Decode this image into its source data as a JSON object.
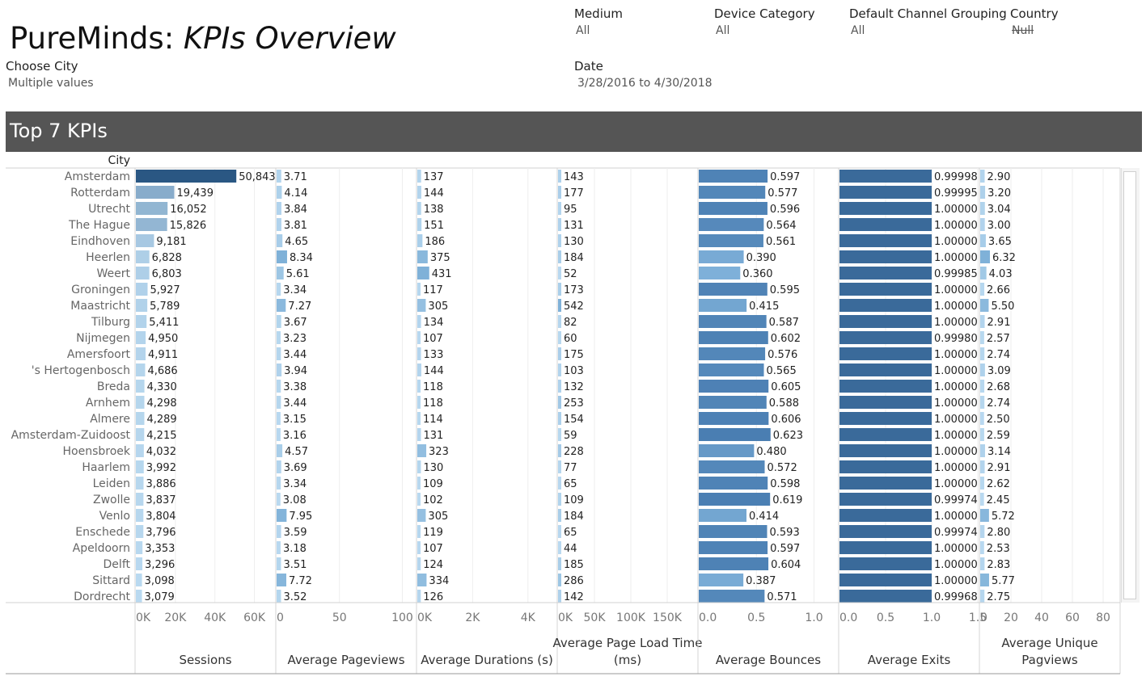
{
  "header": {
    "title_main": "PureMinds: ",
    "title_emph": "KPIs Overview"
  },
  "filters": {
    "choose_city": {
      "label": "Choose City",
      "value": "Multiple values"
    },
    "medium": {
      "label": "Medium",
      "value": "All"
    },
    "device_category": {
      "label": "Device Category",
      "value": "All"
    },
    "channel_grouping": {
      "label": "Default Channel Grouping",
      "value": "All"
    },
    "country": {
      "label": "Country",
      "value": "Null"
    },
    "date": {
      "label": "Date",
      "value": "3/28/2016 to 4/30/2018"
    }
  },
  "section": {
    "title": "Top 7 KPIs",
    "row_header": "City"
  },
  "chart_data": {
    "type": "bar",
    "orientation": "horizontal",
    "categories": [
      "Amsterdam",
      "Rotterdam",
      "Utrecht",
      "The Hague",
      "Eindhoven",
      "Heerlen",
      "Weert",
      "Groningen",
      "Maastricht",
      "Tilburg",
      "Nijmegen",
      "Amersfoort",
      "'s Hertogenbosch",
      "Breda",
      "Arnhem",
      "Almere",
      "Amsterdam-Zuidoost",
      "Hoensbroek",
      "Haarlem",
      "Leiden",
      "Zwolle",
      "Venlo",
      "Enschede",
      "Apeldoorn",
      "Delft",
      "Sittard",
      "Dordrecht"
    ],
    "series": [
      {
        "name": "Sessions",
        "labels": [
          "Sessions"
        ],
        "xlim": [
          0,
          70000
        ],
        "ticks": [
          0,
          20000,
          40000,
          60000
        ],
        "tick_labels": [
          "0K",
          "20K",
          "40K",
          "60K"
        ],
        "values": [
          50843,
          19439,
          16052,
          15826,
          9181,
          6828,
          6803,
          5927,
          5789,
          5411,
          4950,
          4911,
          4686,
          4330,
          4298,
          4289,
          4215,
          4032,
          3992,
          3886,
          3837,
          3804,
          3796,
          3353,
          3296,
          3098,
          3079
        ],
        "value_labels": [
          "50,843",
          "19,439",
          "16,052",
          "15,826",
          "9,181",
          "6,828",
          "6,803",
          "5,927",
          "5,789",
          "5,411",
          "4,950",
          "4,911",
          "4,686",
          "4,330",
          "4,298",
          "4,289",
          "4,215",
          "4,032",
          "3,992",
          "3,886",
          "3,837",
          "3,804",
          "3,796",
          "3,353",
          "3,296",
          "3,098",
          "3,079"
        ],
        "color_low": "#b9d9f0",
        "color_high": "#2a5783"
      },
      {
        "name": "Average Pageviews",
        "labels": [
          "Average Pageviews"
        ],
        "xlim": [
          0,
          110
        ],
        "ticks": [
          0,
          50,
          100
        ],
        "tick_labels": [
          "0",
          "50",
          "100"
        ],
        "values": [
          3.71,
          4.14,
          3.84,
          3.81,
          4.65,
          8.34,
          5.61,
          3.34,
          7.27,
          3.67,
          3.23,
          3.44,
          3.94,
          3.38,
          3.44,
          3.15,
          3.16,
          4.57,
          3.69,
          3.34,
          3.08,
          7.95,
          3.59,
          3.18,
          3.51,
          7.72,
          3.52
        ],
        "value_labels": [
          "3.71",
          "4.14",
          "3.84",
          "3.81",
          "4.65",
          "8.34",
          "5.61",
          "3.34",
          "7.27",
          "3.67",
          "3.23",
          "3.44",
          "3.94",
          "3.38",
          "3.44",
          "3.15",
          "3.16",
          "4.57",
          "3.69",
          "3.34",
          "3.08",
          "7.95",
          "3.59",
          "3.18",
          "3.51",
          "7.72",
          "3.52"
        ],
        "color_low": "#b9d9f0",
        "color_high": "#7fb1d8"
      },
      {
        "name": "Average Durations (s)",
        "labels": [
          "Average Durations (s)"
        ],
        "xlim": [
          0,
          5000
        ],
        "ticks": [
          0,
          2000,
          4000
        ],
        "tick_labels": [
          "0K",
          "2K",
          "4K"
        ],
        "values": [
          137,
          144,
          138,
          151,
          186,
          375,
          431,
          117,
          305,
          134,
          107,
          133,
          144,
          118,
          118,
          114,
          131,
          323,
          130,
          109,
          102,
          305,
          119,
          107,
          124,
          334,
          126
        ],
        "value_labels": [
          "137",
          "144",
          "138",
          "151",
          "186",
          "375",
          "431",
          "117",
          "305",
          "134",
          "107",
          "133",
          "144",
          "118",
          "118",
          "114",
          "131",
          "323",
          "130",
          "109",
          "102",
          "305",
          "119",
          "107",
          "124",
          "334",
          "126"
        ],
        "color_low": "#b9d9f0",
        "color_high": "#7fb1d8"
      },
      {
        "name": "Average Page Load Time (ms)",
        "labels": [
          "Average Page Load Time",
          "(ms)"
        ],
        "xlim": [
          0,
          190000
        ],
        "ticks": [
          0,
          50000,
          100000,
          150000
        ],
        "tick_labels": [
          "0K",
          "50K",
          "100K",
          "150K"
        ],
        "values": [
          143,
          177,
          95,
          131,
          130,
          184,
          52,
          173,
          542,
          82,
          60,
          175,
          103,
          132,
          253,
          154,
          59,
          228,
          77,
          65,
          109,
          184,
          65,
          44,
          185,
          286,
          142
        ],
        "value_labels": [
          "143",
          "177",
          "95",
          "131",
          "130",
          "184",
          "52",
          "173",
          "542",
          "82",
          "60",
          "175",
          "103",
          "132",
          "253",
          "154",
          "59",
          "228",
          "77",
          "65",
          "109",
          "184",
          "65",
          "44",
          "185",
          "286",
          "142"
        ],
        "color_low": "#b9d9f0",
        "color_high": "#7fb1d8"
      },
      {
        "name": "Average Bounces",
        "labels": [
          "Average Bounces"
        ],
        "xlim": [
          0,
          1.2
        ],
        "ticks": [
          0,
          0.5,
          1.0
        ],
        "tick_labels": [
          "0.0",
          "0.5",
          "1.0"
        ],
        "values": [
          0.597,
          0.577,
          0.596,
          0.564,
          0.561,
          0.39,
          0.36,
          0.595,
          0.415,
          0.587,
          0.602,
          0.576,
          0.565,
          0.605,
          0.588,
          0.606,
          0.623,
          0.48,
          0.572,
          0.598,
          0.619,
          0.414,
          0.593,
          0.597,
          0.604,
          0.387,
          0.571
        ],
        "value_labels": [
          "0.597",
          "0.577",
          "0.596",
          "0.564",
          "0.561",
          "0.390",
          "0.360",
          "0.595",
          "0.415",
          "0.587",
          "0.602",
          "0.576",
          "0.565",
          "0.605",
          "0.588",
          "0.606",
          "0.623",
          "0.480",
          "0.572",
          "0.598",
          "0.619",
          "0.414",
          "0.593",
          "0.597",
          "0.604",
          "0.387",
          "0.571"
        ],
        "color_low": "#7eb0d9",
        "color_high": "#4a7eb2"
      },
      {
        "name": "Average Exits",
        "labels": [
          "Average Exits"
        ],
        "xlim": [
          0,
          1.5
        ],
        "ticks": [
          0,
          0.5,
          1.0,
          1.5
        ],
        "tick_labels": [
          "0.0",
          "0.5",
          "1.0",
          "1.5"
        ],
        "values": [
          0.99998,
          0.99995,
          1.0,
          1.0,
          1.0,
          1.0,
          0.99985,
          1.0,
          1.0,
          1.0,
          0.9998,
          1.0,
          1.0,
          1.0,
          1.0,
          1.0,
          1.0,
          1.0,
          1.0,
          1.0,
          0.99974,
          1.0,
          0.99974,
          1.0,
          1.0,
          1.0,
          0.99968
        ],
        "value_labels": [
          "0.99998",
          "0.99995",
          "1.00000",
          "1.00000",
          "1.00000",
          "1.00000",
          "0.99985",
          "1.00000",
          "1.00000",
          "1.00000",
          "0.99980",
          "1.00000",
          "1.00000",
          "1.00000",
          "1.00000",
          "1.00000",
          "1.00000",
          "1.00000",
          "1.00000",
          "1.00000",
          "0.99974",
          "1.00000",
          "0.99974",
          "1.00000",
          "1.00000",
          "1.00000",
          "0.99968"
        ],
        "color_low": "#3a6a9a",
        "color_high": "#3a6a9a"
      },
      {
        "name": "Average Unique Pagviews",
        "labels": [
          "Average Unique",
          "Pagviews"
        ],
        "xlim": [
          0,
          90
        ],
        "ticks": [
          0,
          20,
          40,
          60,
          80
        ],
        "tick_labels": [
          "0",
          "20",
          "40",
          "60",
          "80"
        ],
        "values": [
          2.9,
          3.2,
          3.04,
          3.0,
          3.65,
          6.32,
          4.03,
          2.66,
          5.5,
          2.91,
          2.57,
          2.74,
          3.09,
          2.68,
          2.74,
          2.5,
          2.59,
          3.14,
          2.91,
          2.62,
          2.45,
          5.72,
          2.8,
          2.53,
          2.83,
          5.77,
          2.75
        ],
        "value_labels": [
          "2.90",
          "3.20",
          "3.04",
          "3.00",
          "3.65",
          "6.32",
          "4.03",
          "2.66",
          "5.50",
          "2.91",
          "2.57",
          "2.74",
          "3.09",
          "2.68",
          "2.74",
          "2.50",
          "2.59",
          "3.14",
          "2.91",
          "2.62",
          "2.45",
          "5.72",
          "2.80",
          "2.53",
          "2.83",
          "5.77",
          "2.75"
        ],
        "color_low": "#b9d9f0",
        "color_high": "#7fb1d8"
      }
    ]
  }
}
